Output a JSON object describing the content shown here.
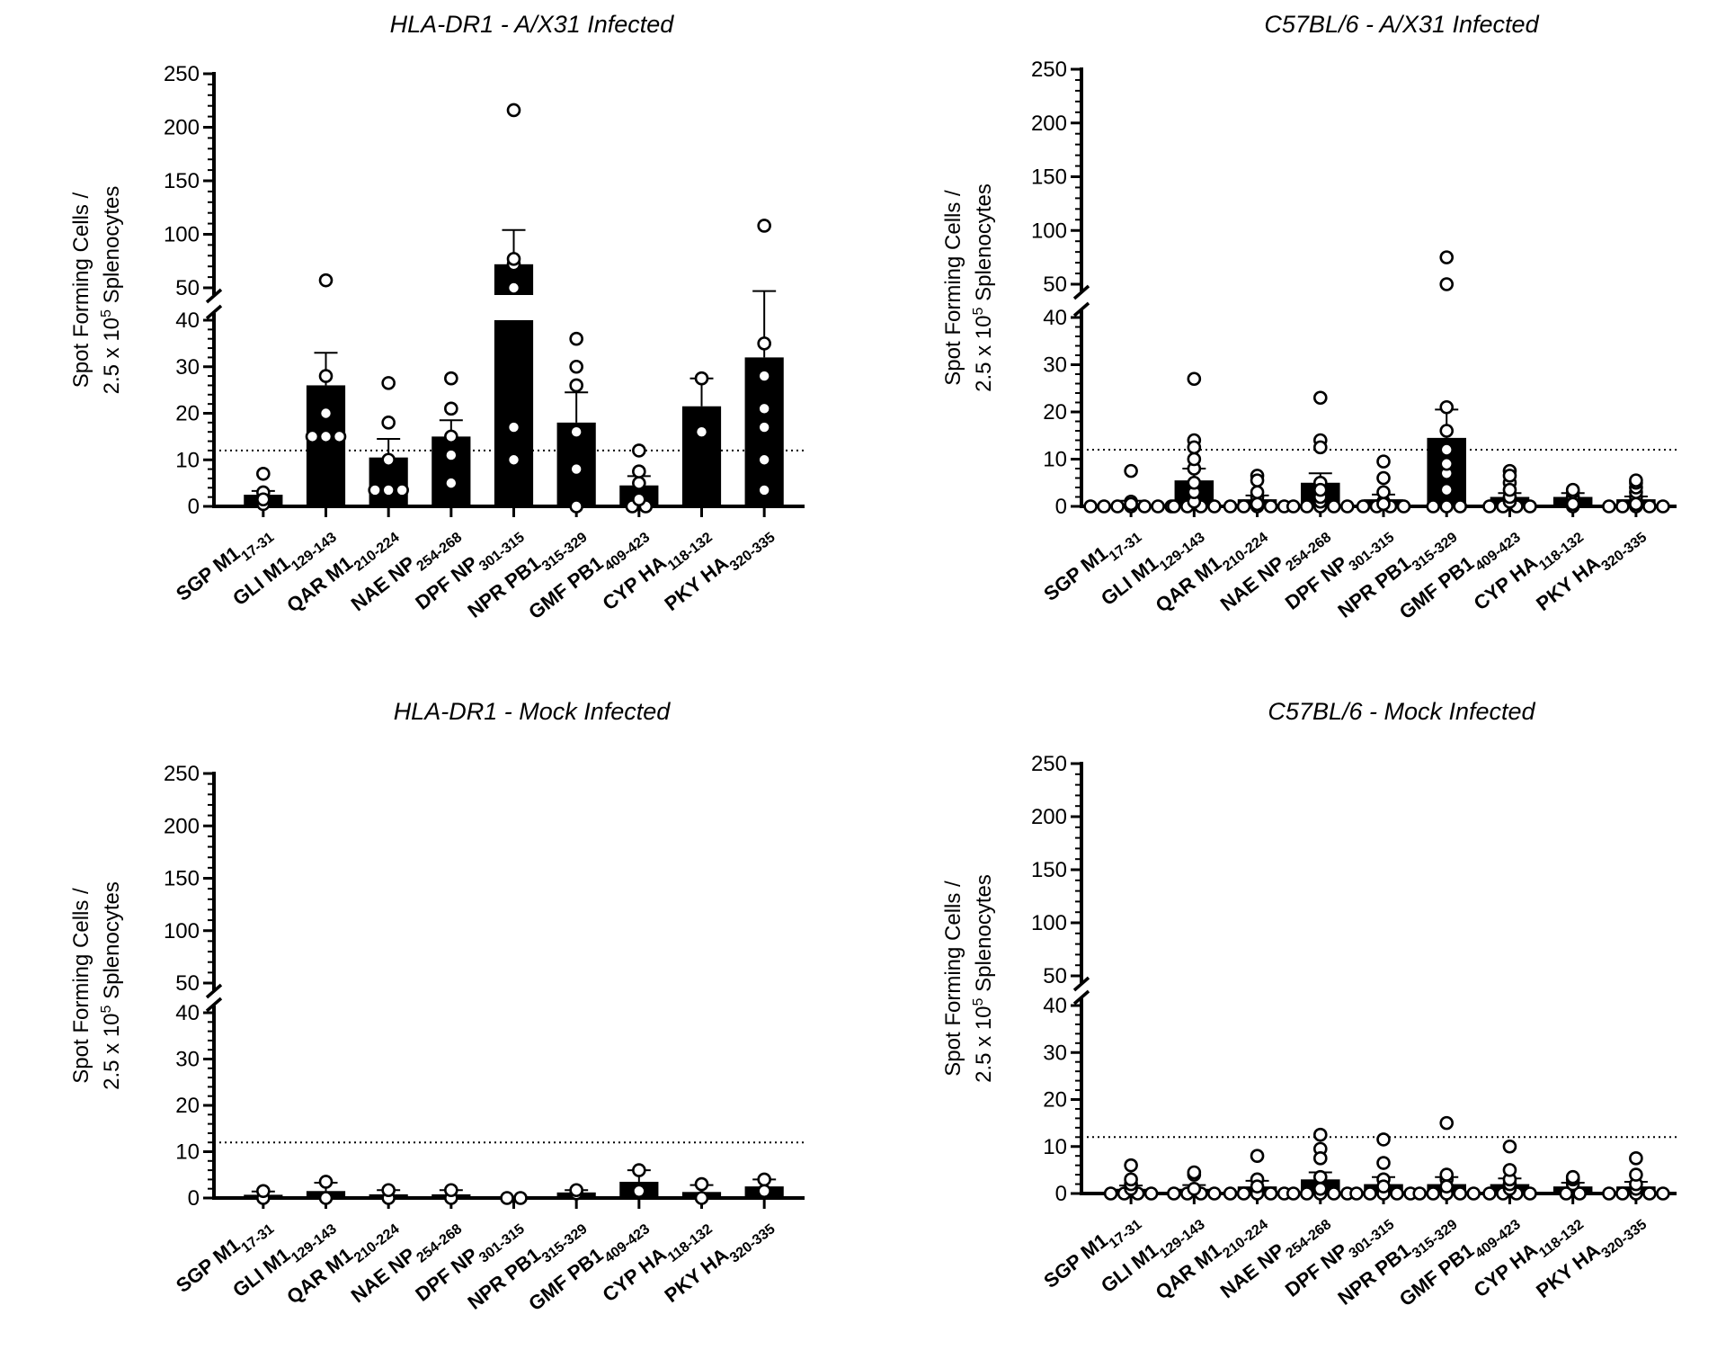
{
  "chart_data": [
    {
      "type": "bar",
      "title": "HLA-DR1 - A/X31 Infected",
      "ylabel_line1": "Spot Forming Cells /",
      "ylabel_line2_pre": "2.5 x 10",
      "ylabel_line2_sup": "5",
      "ylabel_line2_post": " Splenocytes",
      "y_axis": "broken",
      "ylim_lower": [
        0,
        40
      ],
      "ylim_upper": [
        40,
        250
      ],
      "yticks": [
        0,
        10,
        20,
        30,
        40,
        50,
        100,
        150,
        200,
        250
      ],
      "threshold": 12,
      "categories": [
        "SGP M1",
        "GLI M1",
        "QAR M1",
        "NAE NP",
        "DPF NP",
        "NPR PB1",
        "GMF PB1",
        "CYP HA",
        "PKY HA"
      ],
      "category_subscripts": [
        "17-31",
        "129-143",
        "210-224",
        "254-268",
        "301-315",
        "315-329",
        "409-423",
        "118-132",
        "320-335"
      ],
      "values": [
        2.5,
        26,
        10.5,
        15,
        72,
        18,
        4.5,
        21.5,
        32
      ],
      "errors": [
        0.8,
        7,
        4,
        3.5,
        32,
        6.5,
        2,
        6,
        15
      ],
      "points": [
        [
          0.5,
          3,
          7,
          1,
          2,
          1.5
        ],
        [
          57,
          28,
          15,
          20,
          15,
          15
        ],
        [
          26.5,
          18,
          10,
          3.5,
          3.5,
          3.5
        ],
        [
          27.5,
          21,
          15,
          11,
          5
        ],
        [
          216,
          77,
          72,
          50,
          17,
          10
        ],
        [
          36,
          30,
          26,
          16,
          8,
          0
        ],
        [
          12,
          7.5,
          5,
          1.5,
          0,
          0
        ],
        [
          27.5,
          16
        ],
        [
          108,
          35,
          28,
          21,
          17,
          10,
          3.5
        ]
      ]
    },
    {
      "type": "bar",
      "title": "C57BL/6 - A/X31 Infected",
      "ylabel_line1": "Spot Forming Cells /",
      "ylabel_line2_pre": "2.5 x 10",
      "ylabel_line2_sup": "5",
      "ylabel_line2_post": " Splenocytes",
      "y_axis": "broken",
      "ylim_lower": [
        0,
        40
      ],
      "ylim_upper": [
        40,
        250
      ],
      "yticks": [
        0,
        10,
        20,
        30,
        40,
        50,
        100,
        150,
        200,
        250
      ],
      "threshold": 12,
      "categories": [
        "SGP M1",
        "GLI M1",
        "QAR M1",
        "NAE NP",
        "DPF NP",
        "NPR PB1",
        "GMF PB1",
        "CYP HA",
        "PKY HA"
      ],
      "category_subscripts": [
        "17-31",
        "129-143",
        "210-224",
        "254-268",
        "301-315",
        "315-329",
        "409-423",
        "118-132",
        "320-335"
      ],
      "values": [
        0.5,
        5.5,
        1.5,
        5,
        1.5,
        14.5,
        2,
        2,
        1.5
      ],
      "errors": [
        0.7,
        2.5,
        0.8,
        2,
        1,
        6,
        0.8,
        0.8,
        0.6
      ],
      "points": [
        [
          7.5,
          1,
          0.5,
          0,
          0,
          0,
          0,
          0,
          0,
          0
        ],
        [
          27,
          14,
          12.5,
          10,
          8,
          5,
          3,
          1,
          0,
          0,
          0,
          0
        ],
        [
          6.5,
          5.5,
          3,
          2,
          1,
          0.5,
          0,
          0,
          0,
          0,
          0
        ],
        [
          23,
          14,
          12.5,
          5,
          3.5,
          2,
          1,
          0,
          0,
          0,
          0,
          0
        ],
        [
          9.5,
          6,
          3,
          1,
          0.5,
          0,
          0,
          0,
          0
        ],
        [
          75,
          50,
          21,
          16,
          12,
          9,
          7,
          3.5,
          0,
          0,
          0
        ],
        [
          7.5,
          6.5,
          5,
          3.5,
          2,
          1,
          0,
          0,
          0,
          0
        ],
        [
          3.5,
          3,
          2,
          1,
          0.5,
          0
        ],
        [
          5.5,
          5,
          4,
          3,
          2,
          1,
          0.5,
          0,
          0,
          0,
          0,
          0
        ]
      ]
    },
    {
      "type": "bar",
      "title": "HLA-DR1 - Mock Infected",
      "ylabel_line1": "Spot Forming Cells /",
      "ylabel_line2_pre": "2.5 x 10",
      "ylabel_line2_sup": "5",
      "ylabel_line2_post": " Splenocytes",
      "y_axis": "broken",
      "ylim_lower": [
        0,
        40
      ],
      "ylim_upper": [
        40,
        250
      ],
      "yticks": [
        0,
        10,
        20,
        30,
        40,
        50,
        100,
        150,
        200,
        250
      ],
      "threshold": 12,
      "categories": [
        "SGP M1",
        "GLI M1",
        "QAR M1",
        "NAE NP",
        "DPF NP",
        "NPR PB1",
        "GMF PB1",
        "CYP HA",
        "PKY HA"
      ],
      "category_subscripts": [
        "17-31",
        "129-143",
        "210-224",
        "254-268",
        "301-315",
        "315-329",
        "409-423",
        "118-132",
        "320-335"
      ],
      "values": [
        0.7,
        1.5,
        0.8,
        0.8,
        0,
        1.2,
        3.5,
        1.3,
        2.5
      ],
      "errors": [
        0.7,
        1.8,
        0.9,
        0.9,
        0,
        0.5,
        2.5,
        1.5,
        1.5
      ],
      "points": [
        [
          0,
          1.5
        ],
        [
          3.5,
          0
        ],
        [
          0,
          1.7
        ],
        [
          0,
          1.7
        ],
        [
          0,
          0
        ],
        [
          1,
          1.7
        ],
        [
          6,
          1.5
        ],
        [
          3,
          0
        ],
        [
          4,
          1.5
        ]
      ]
    },
    {
      "type": "bar",
      "title": "C57BL/6 - Mock Infected",
      "ylabel_line1": "Spot Forming Cells /",
      "ylabel_line2_pre": "2.5 x 10",
      "ylabel_line2_sup": "5",
      "ylabel_line2_post": " Splenocytes",
      "y_axis": "broken",
      "ylim_lower": [
        0,
        40
      ],
      "ylim_upper": [
        40,
        250
      ],
      "yticks": [
        0,
        10,
        20,
        30,
        40,
        50,
        100,
        150,
        200,
        250
      ],
      "threshold": 12,
      "categories": [
        "SGP M1",
        "GLI M1",
        "QAR M1",
        "NAE NP",
        "DPF NP",
        "NPR PB1",
        "GMF PB1",
        "CYP HA",
        "PKY HA"
      ],
      "category_subscripts": [
        "17-31",
        "129-143",
        "210-224",
        "254-268",
        "301-315",
        "315-329",
        "409-423",
        "118-132",
        "320-335"
      ],
      "values": [
        1,
        1,
        1.5,
        3,
        2,
        2,
        2,
        1.5,
        1.5
      ],
      "errors": [
        0.7,
        0.8,
        1.2,
        1.5,
        1.5,
        1.5,
        1.2,
        0.8,
        1
      ],
      "points": [
        [
          6,
          3,
          2,
          1,
          0,
          0,
          0,
          0
        ],
        [
          4.5,
          4,
          1,
          0,
          0,
          0,
          0
        ],
        [
          8,
          3,
          1.5,
          0,
          0,
          0,
          0,
          0
        ],
        [
          12.5,
          9.5,
          7.5,
          3.5,
          1,
          0,
          0,
          0,
          0,
          0
        ],
        [
          11.5,
          6.5,
          3,
          1.5,
          0,
          0,
          0,
          0,
          0
        ],
        [
          15,
          4,
          3,
          1.5,
          0,
          0,
          0,
          0,
          0
        ],
        [
          10,
          5,
          3,
          2,
          1,
          0,
          0,
          0,
          0
        ],
        [
          3.5,
          3,
          2,
          0,
          0
        ],
        [
          7.5,
          4,
          2,
          1,
          0,
          0,
          0,
          0,
          0
        ]
      ]
    }
  ]
}
